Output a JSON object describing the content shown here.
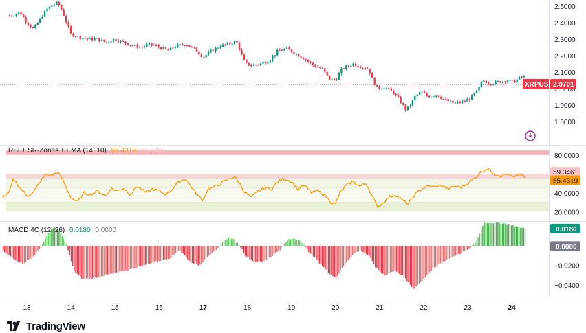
{
  "chart_data": [
    {
      "type": "candlestick",
      "symbol": "XRPUSD",
      "last_price": "2.0701",
      "y_ticks": [
        "2.5000",
        "2.4000",
        "2.3000",
        "2.2000",
        "2.1000",
        "2.0000",
        "1.9000",
        "1.8000"
      ],
      "ylim": [
        1.75,
        2.52
      ],
      "x_ticks": [
        "13",
        "14",
        "15",
        "16",
        "17",
        "18",
        "19",
        "20",
        "21",
        "22",
        "23",
        "24"
      ],
      "colors": {
        "up": "#089981",
        "down": "#f23645",
        "last_line": "#f23645"
      },
      "close_path": [
        [
          12.6,
          2.44
        ],
        [
          12.85,
          2.46
        ],
        [
          13.0,
          2.4
        ],
        [
          13.15,
          2.36
        ],
        [
          13.3,
          2.42
        ],
        [
          13.45,
          2.48
        ],
        [
          13.55,
          2.5
        ],
        [
          13.7,
          2.52
        ],
        [
          13.8,
          2.47
        ],
        [
          13.9,
          2.4
        ],
        [
          14.0,
          2.33
        ],
        [
          14.2,
          2.31
        ],
        [
          14.4,
          2.3
        ],
        [
          14.6,
          2.3
        ],
        [
          14.8,
          2.28
        ],
        [
          15.0,
          2.3
        ],
        [
          15.2,
          2.28
        ],
        [
          15.4,
          2.26
        ],
        [
          15.6,
          2.25
        ],
        [
          15.8,
          2.27
        ],
        [
          16.0,
          2.25
        ],
        [
          16.2,
          2.23
        ],
        [
          16.4,
          2.26
        ],
        [
          16.6,
          2.27
        ],
        [
          16.8,
          2.24
        ],
        [
          17.0,
          2.19
        ],
        [
          17.2,
          2.23
        ],
        [
          17.4,
          2.26
        ],
        [
          17.6,
          2.27
        ],
        [
          17.75,
          2.29
        ],
        [
          17.85,
          2.22
        ],
        [
          17.95,
          2.15
        ],
        [
          18.1,
          2.14
        ],
        [
          18.3,
          2.15
        ],
        [
          18.5,
          2.17
        ],
        [
          18.7,
          2.23
        ],
        [
          18.9,
          2.24
        ],
        [
          19.1,
          2.21
        ],
        [
          19.3,
          2.18
        ],
        [
          19.5,
          2.14
        ],
        [
          19.7,
          2.12
        ],
        [
          19.85,
          2.06
        ],
        [
          20.0,
          2.05
        ],
        [
          20.15,
          2.12
        ],
        [
          20.4,
          2.15
        ],
        [
          20.6,
          2.13
        ],
        [
          20.75,
          2.12
        ],
        [
          20.85,
          2.05
        ],
        [
          20.95,
          2.0
        ],
        [
          21.1,
          2.01
        ],
        [
          21.3,
          1.98
        ],
        [
          21.45,
          1.93
        ],
        [
          21.6,
          1.87
        ],
        [
          21.7,
          1.9
        ],
        [
          21.8,
          1.95
        ],
        [
          21.95,
          1.98
        ],
        [
          22.1,
          1.95
        ],
        [
          22.3,
          1.96
        ],
        [
          22.5,
          1.93
        ],
        [
          22.7,
          1.91
        ],
        [
          22.9,
          1.92
        ],
        [
          23.05,
          1.94
        ],
        [
          23.2,
          1.98
        ],
        [
          23.35,
          2.05
        ],
        [
          23.5,
          2.03
        ],
        [
          23.7,
          2.04
        ],
        [
          23.9,
          2.05
        ],
        [
          24.05,
          2.04
        ],
        [
          24.2,
          2.07
        ],
        [
          24.3,
          2.0701
        ]
      ]
    },
    {
      "type": "line",
      "title": "RSI + SR-Zones + EMA (14, 10)",
      "title_value": "55.4319",
      "title_value_2": "55.5407",
      "y_ticks": [
        "80.0000",
        "40.0000",
        "20.0000"
      ],
      "ylim": [
        10,
        90
      ],
      "right_tags": [
        {
          "label": "59.3461",
          "value": 59.3461,
          "color": "#f8c4c8",
          "text_color": "#131722"
        },
        {
          "label": "55.4319",
          "value": 55.4319,
          "color": "#ff9800",
          "text_color": "#ffffff"
        }
      ],
      "zones": [
        {
          "from": 80,
          "to": 85,
          "color": "#f5b3b8"
        },
        {
          "from": 55,
          "to": 60,
          "color": "#fbd4d7"
        },
        {
          "from": 45,
          "to": 55,
          "color": "#f3f6e6"
        },
        {
          "from": 30,
          "to": 45,
          "color": "#f8faef"
        },
        {
          "from": 20,
          "to": 30,
          "color": "#e8f0d6"
        }
      ],
      "series": [
        {
          "color": "#ff9800",
          "points": [
            [
              12.45,
              35
            ],
            [
              12.6,
              40
            ],
            [
              12.7,
              55
            ],
            [
              12.85,
              45
            ],
            [
              13.0,
              37
            ],
            [
              13.15,
              40
            ],
            [
              13.3,
              52
            ],
            [
              13.45,
              60
            ],
            [
              13.55,
              58
            ],
            [
              13.7,
              62
            ],
            [
              13.8,
              55
            ],
            [
              13.9,
              45
            ],
            [
              14.0,
              35
            ],
            [
              14.15,
              30
            ],
            [
              14.3,
              40
            ],
            [
              14.45,
              38
            ],
            [
              14.6,
              42
            ],
            [
              14.8,
              36
            ],
            [
              14.9,
              45
            ],
            [
              15.05,
              42
            ],
            [
              15.2,
              45
            ],
            [
              15.35,
              38
            ],
            [
              15.5,
              47
            ],
            [
              15.7,
              40
            ],
            [
              15.85,
              44
            ],
            [
              16.0,
              42
            ],
            [
              16.15,
              38
            ],
            [
              16.3,
              44
            ],
            [
              16.45,
              52
            ],
            [
              16.6,
              55
            ],
            [
              16.75,
              45
            ],
            [
              16.9,
              36
            ],
            [
              17.0,
              32
            ],
            [
              17.1,
              44
            ],
            [
              17.25,
              46
            ],
            [
              17.4,
              50
            ],
            [
              17.55,
              54
            ],
            [
              17.7,
              57
            ],
            [
              17.8,
              52
            ],
            [
              17.95,
              40
            ],
            [
              18.1,
              35
            ],
            [
              18.25,
              42
            ],
            [
              18.4,
              45
            ],
            [
              18.55,
              44
            ],
            [
              18.7,
              52
            ],
            [
              18.85,
              55
            ],
            [
              19.0,
              52
            ],
            [
              19.15,
              44
            ],
            [
              19.3,
              48
            ],
            [
              19.45,
              40
            ],
            [
              19.6,
              42
            ],
            [
              19.75,
              38
            ],
            [
              19.9,
              30
            ],
            [
              20.0,
              28
            ],
            [
              20.1,
              40
            ],
            [
              20.25,
              48
            ],
            [
              20.4,
              52
            ],
            [
              20.55,
              47
            ],
            [
              20.7,
              50
            ],
            [
              20.85,
              35
            ],
            [
              20.95,
              25
            ],
            [
              21.05,
              28
            ],
            [
              21.2,
              35
            ],
            [
              21.35,
              38
            ],
            [
              21.5,
              33
            ],
            [
              21.65,
              28
            ],
            [
              21.8,
              38
            ],
            [
              21.95,
              44
            ],
            [
              22.1,
              47
            ],
            [
              22.25,
              46
            ],
            [
              22.4,
              48
            ],
            [
              22.55,
              44
            ],
            [
              22.7,
              47
            ],
            [
              22.85,
              46
            ],
            [
              23.0,
              50
            ],
            [
              23.15,
              55
            ],
            [
              23.3,
              62
            ],
            [
              23.45,
              66
            ],
            [
              23.6,
              60
            ],
            [
              23.75,
              58
            ],
            [
              23.9,
              60
            ],
            [
              24.05,
              56
            ],
            [
              24.2,
              60
            ],
            [
              24.3,
              55.43
            ]
          ]
        }
      ]
    },
    {
      "type": "bar",
      "title": "MACD 4C (12, 26)",
      "title_value": "0.0180",
      "title_value_2": "0.0000",
      "y_ticks": [
        "−0.0200",
        "−0.0400"
      ],
      "ylim": [
        -0.052,
        0.025
      ],
      "right_tags": [
        {
          "label": "0.0180",
          "value": 0.018,
          "color": "#089981",
          "text_color": "#ffffff"
        },
        {
          "label": "0.0000",
          "value": 0.0,
          "color": "#787b86",
          "text_color": "#ffffff"
        }
      ],
      "colors": {
        "positive": "#66cc66",
        "positive_strong": "#089981",
        "negative": "#f23645",
        "negative_weak": "#e57373"
      },
      "profile": [
        [
          12.45,
          -0.005
        ],
        [
          12.65,
          -0.012
        ],
        [
          12.9,
          -0.018
        ],
        [
          13.1,
          -0.012
        ],
        [
          13.3,
          -0.002
        ],
        [
          13.45,
          0.012
        ],
        [
          13.6,
          0.02
        ],
        [
          13.75,
          0.014
        ],
        [
          13.9,
          0.0
        ],
        [
          14.05,
          -0.025
        ],
        [
          14.25,
          -0.034
        ],
        [
          14.5,
          -0.033
        ],
        [
          14.75,
          -0.03
        ],
        [
          15.0,
          -0.028
        ],
        [
          15.25,
          -0.025
        ],
        [
          15.5,
          -0.022
        ],
        [
          15.75,
          -0.018
        ],
        [
          16.0,
          -0.015
        ],
        [
          16.25,
          -0.012
        ],
        [
          16.45,
          -0.004
        ],
        [
          16.7,
          -0.016
        ],
        [
          16.9,
          -0.02
        ],
        [
          17.1,
          -0.01
        ],
        [
          17.3,
          -0.004
        ],
        [
          17.45,
          0.006
        ],
        [
          17.6,
          0.009
        ],
        [
          17.8,
          0.002
        ],
        [
          17.95,
          -0.01
        ],
        [
          18.15,
          -0.016
        ],
        [
          18.35,
          -0.016
        ],
        [
          18.55,
          -0.01
        ],
        [
          18.75,
          -0.003
        ],
        [
          18.9,
          0.006
        ],
        [
          19.05,
          0.008
        ],
        [
          19.2,
          0.006
        ],
        [
          19.35,
          -0.004
        ],
        [
          19.6,
          -0.016
        ],
        [
          19.85,
          -0.028
        ],
        [
          20.0,
          -0.033
        ],
        [
          20.15,
          -0.022
        ],
        [
          20.35,
          -0.01
        ],
        [
          20.55,
          -0.004
        ],
        [
          20.75,
          -0.01
        ],
        [
          20.9,
          -0.022
        ],
        [
          21.1,
          -0.03
        ],
        [
          21.35,
          -0.025
        ],
        [
          21.55,
          -0.032
        ],
        [
          21.75,
          -0.044
        ],
        [
          21.9,
          -0.038
        ],
        [
          22.1,
          -0.028
        ],
        [
          22.35,
          -0.018
        ],
        [
          22.6,
          -0.012
        ],
        [
          22.85,
          -0.007
        ],
        [
          23.05,
          -0.002
        ],
        [
          23.2,
          0.006
        ],
        [
          23.35,
          0.024
        ],
        [
          23.6,
          0.024
        ],
        [
          23.9,
          0.023
        ],
        [
          24.1,
          0.02
        ],
        [
          24.3,
          0.018
        ]
      ]
    }
  ],
  "brand": {
    "name": "TradingView"
  },
  "icons": {
    "logo": "tradingview-logo-icon",
    "flash": "flash-icon"
  }
}
